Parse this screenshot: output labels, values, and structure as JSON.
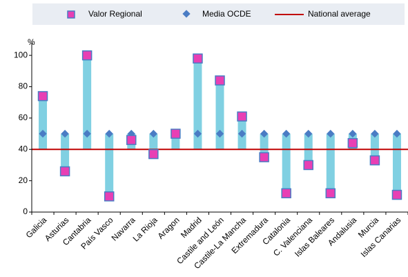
{
  "chart_data": {
    "type": "range_dot",
    "y_label": "%",
    "categories": [
      "Galicia",
      "Asturias",
      "Cantabria",
      "País Vasco",
      "Navarra",
      "La Rioja",
      "Aragon",
      "Madrid",
      "Castile and León",
      "Castile-La Mancha",
      "Extremadura",
      "Catalonia",
      "C. Valenciana",
      "Islas Baleares",
      "Andalusia",
      "Murcia",
      "Islas Canarias"
    ],
    "series": [
      {
        "name": "Valor Regional",
        "color": "#e83fb4",
        "values": [
          74,
          26,
          100,
          10,
          46,
          37,
          50,
          98,
          84,
          61,
          35,
          12,
          30,
          12,
          44,
          33,
          11
        ]
      },
      {
        "name": "Media OCDE",
        "color": "#4a7cc4",
        "values": [
          50,
          50,
          50,
          50,
          50,
          50,
          50,
          50,
          50,
          50,
          50,
          50,
          50,
          50,
          50,
          50,
          50
        ]
      }
    ],
    "reference_line": {
      "name": "National average",
      "color": "#c00000",
      "value": 40
    },
    "range_color": "#80d0e2",
    "ylim": [
      0,
      108
    ],
    "yticks": [
      0,
      20,
      40,
      60,
      80,
      100
    ],
    "grid": false
  }
}
